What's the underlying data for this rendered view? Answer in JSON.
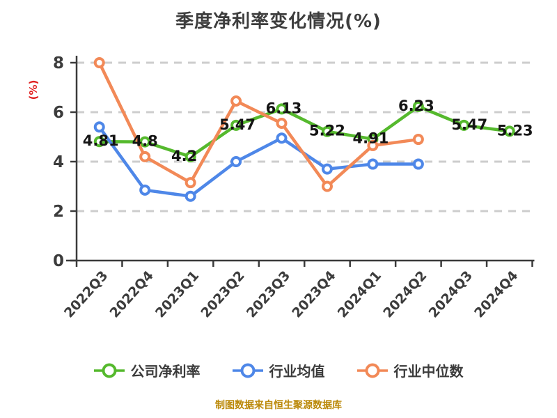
{
  "page": {
    "background": "#ffffff"
  },
  "header": {
    "title": "季度净利率变化情况(%)"
  },
  "footer": {
    "source_note": "制图数据来自恒生聚源数据库",
    "color": "#bb8909"
  },
  "chart_data": {
    "type": "line",
    "title": "季度净利率变化情况(%)",
    "xlabel": "",
    "ylabel": "(%)",
    "ylabel_color": "#e02020",
    "ylim": [
      0,
      8
    ],
    "yticks": [
      0,
      2,
      4,
      6,
      8
    ],
    "grid": "horizontal-dashed",
    "legend_position": "bottom",
    "categories": [
      "2022Q3",
      "2022Q4",
      "2023Q1",
      "2023Q2",
      "2023Q3",
      "2023Q4",
      "2024Q1",
      "2024Q2",
      "2024Q3",
      "2024Q4"
    ],
    "series": [
      {
        "key": "company",
        "name": "公司净利率",
        "color": "#55b92d",
        "values": [
          4.81,
          4.8,
          4.2,
          5.47,
          6.13,
          5.22,
          4.91,
          6.23,
          5.47,
          5.23
        ],
        "point_labels": [
          "4.81",
          "4.8",
          "4.2",
          "5.47",
          "6.13",
          "5.22",
          "4.91",
          "6.23",
          "5.47",
          "5.23"
        ]
      },
      {
        "key": "industry-avg",
        "name": "行业均值",
        "color": "#4e87e8",
        "values": [
          5.4,
          2.85,
          2.6,
          4.0,
          4.95,
          3.7,
          3.9,
          3.9,
          null,
          null
        ],
        "point_labels": null
      },
      {
        "key": "industry-median",
        "name": "行业中位数",
        "color": "#f28957",
        "values": [
          8.0,
          4.2,
          3.15,
          6.45,
          5.55,
          3.0,
          4.65,
          4.9,
          null,
          null
        ],
        "point_labels": null
      }
    ],
    "style": {
      "axis_color": "#3a3a3a",
      "grid_color": "#cdcdcd",
      "tick_label_color": "#3c3c3c",
      "point_label_color": "#141414",
      "marker_fill": "#ffffff",
      "label_dx": [
        2,
        0,
        -9,
        2,
        3,
        0,
        -3,
        -3,
        8,
        8
      ],
      "label_dy": 6
    }
  }
}
